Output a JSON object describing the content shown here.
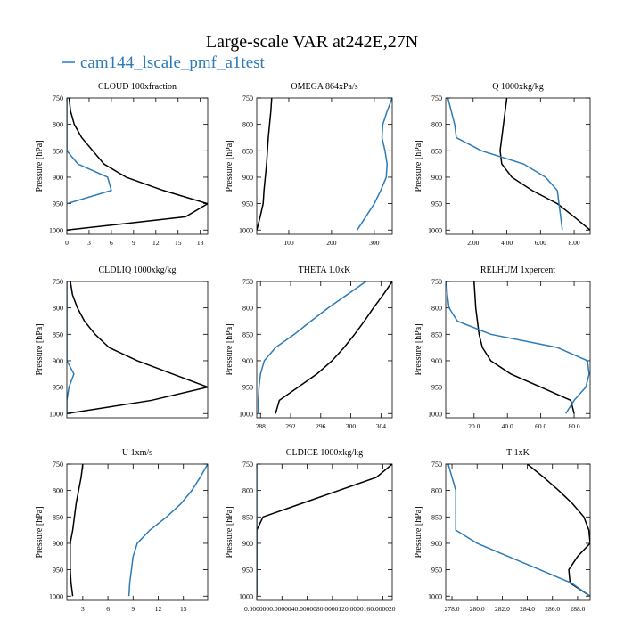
{
  "title": "Large-scale VAR at242E,27N",
  "legend": {
    "name": "cam144_lscale_pmf_a1test",
    "color": "#2b7bb9"
  },
  "chart_data": [
    {
      "type": "line",
      "title": "CLOUD  100xfraction",
      "ylabel": "Pressure [hPa]",
      "y": [
        750,
        775,
        800,
        825,
        850,
        875,
        900,
        925,
        950,
        975,
        1000
      ],
      "xlim": [
        0,
        19
      ],
      "xticks": [
        0,
        3,
        6,
        9,
        12,
        15,
        18
      ],
      "ylim": [
        750,
        1008
      ],
      "yticks": [
        750,
        800,
        850,
        900,
        950,
        1000
      ],
      "series": [
        {
          "color": "#000000",
          "values": [
            0.3,
            0.5,
            1,
            2,
            3.5,
            5,
            8,
            13,
            19,
            16,
            0
          ]
        },
        {
          "color": "#2b7bb9",
          "values": [
            0,
            0,
            0,
            0,
            0,
            1.5,
            5.5,
            6,
            0,
            null,
            null
          ]
        }
      ]
    },
    {
      "type": "line",
      "title": "OMEGA  864xPa/s",
      "ylabel": "Pressure [hPa]",
      "y": [
        750,
        775,
        800,
        825,
        850,
        875,
        900,
        925,
        950,
        975,
        1000
      ],
      "xlim": [
        25,
        342
      ],
      "xticks": [
        100,
        200,
        300
      ],
      "ylim": [
        750,
        1008
      ],
      "yticks": [
        750,
        800,
        850,
        900,
        950,
        1000
      ],
      "series": [
        {
          "color": "#000000",
          "values": [
            60,
            58,
            55,
            52,
            50,
            48,
            45,
            42,
            40,
            33,
            25
          ]
        },
        {
          "color": "#2b7bb9",
          "values": [
            342,
            330,
            320,
            318,
            325,
            330,
            328,
            315,
            300,
            280,
            260
          ]
        }
      ]
    },
    {
      "type": "line",
      "title": "Q  1000xkg/kg",
      "ylabel": "Pressure [hPa]",
      "y": [
        750,
        775,
        800,
        825,
        850,
        875,
        900,
        925,
        950,
        975,
        1000
      ],
      "xlim": [
        0.37,
        8.95
      ],
      "xticks": [
        {
          "value": 2,
          "label": "2.00"
        },
        {
          "value": 4,
          "label": "4.00"
        },
        {
          "value": 6,
          "label": "6.00"
        },
        {
          "value": 8,
          "label": "8.00"
        }
      ],
      "ylim": [
        750,
        1008
      ],
      "yticks": [
        750,
        800,
        850,
        900,
        950,
        1000
      ],
      "series": [
        {
          "color": "#000000",
          "values": [
            4.0,
            3.9,
            3.8,
            3.7,
            3.6,
            3.7,
            4.3,
            5.5,
            7.0,
            8.0,
            8.95
          ]
        },
        {
          "color": "#2b7bb9",
          "values": [
            0.5,
            0.7,
            0.9,
            1.0,
            2.5,
            5.0,
            6.3,
            7.0,
            7.1,
            7.2,
            7.3
          ]
        }
      ]
    },
    {
      "type": "line",
      "title": "CLDLIQ  1000xkg/kg",
      "ylabel": "Pressure [hPa]",
      "y": [
        750,
        775,
        800,
        825,
        850,
        875,
        900,
        925,
        950,
        975,
        1000
      ],
      "xlim": [
        0,
        20
      ],
      "ylim": [
        750,
        1008
      ],
      "yticks": [
        750,
        800,
        850,
        900,
        950,
        1000
      ],
      "series": [
        {
          "color": "#000000",
          "values": [
            0.5,
            0.8,
            1.5,
            2.5,
            4,
            6,
            10,
            15,
            20,
            12,
            0
          ]
        },
        {
          "color": "#2b7bb9",
          "values": [
            0,
            0,
            0,
            0,
            0,
            0,
            0,
            1,
            0.3,
            0,
            0
          ]
        }
      ]
    },
    {
      "type": "line",
      "title": "THETA  1.0xK",
      "ylabel": "Pressure [hPa]",
      "y": [
        750,
        775,
        800,
        825,
        850,
        875,
        900,
        925,
        950,
        975,
        1000
      ],
      "xlim": [
        287.5,
        305.5
      ],
      "xticks": [
        288,
        292,
        296,
        300,
        304
      ],
      "ylim": [
        750,
        1008
      ],
      "yticks": [
        750,
        800,
        850,
        900,
        950,
        1000
      ],
      "series": [
        {
          "color": "#000000",
          "values": [
            305.5,
            304.3,
            303,
            301.8,
            300.5,
            299.1,
            297.5,
            295.5,
            293,
            290.5,
            290
          ]
        },
        {
          "color": "#2b7bb9",
          "values": [
            302,
            299.5,
            297,
            294.7,
            292.5,
            290,
            288.5,
            288,
            287.8,
            287.7,
            287.7
          ]
        }
      ]
    },
    {
      "type": "line",
      "title": "RELHUM  1xpercent",
      "ylabel": "Pressure [hPa]",
      "y": [
        750,
        775,
        800,
        825,
        850,
        875,
        900,
        925,
        950,
        975,
        1000
      ],
      "xlim": [
        3,
        89.6
      ],
      "xticks": [
        {
          "value": 20,
          "label": "20.0"
        },
        {
          "value": 40,
          "label": "40.0"
        },
        {
          "value": 60,
          "label": "60.0"
        },
        {
          "value": 80,
          "label": "80.0"
        }
      ],
      "ylim": [
        750,
        1008
      ],
      "yticks": [
        750,
        800,
        850,
        900,
        950,
        1000
      ],
      "series": [
        {
          "color": "#000000",
          "values": [
            20,
            20.5,
            21,
            22,
            23,
            25,
            30,
            42,
            60,
            78,
            80
          ]
        },
        {
          "color": "#2b7bb9",
          "values": [
            3.5,
            4,
            5,
            10,
            30,
            70,
            88,
            89,
            87,
            80,
            75
          ]
        }
      ]
    },
    {
      "type": "line",
      "title": "U  1xm/s",
      "ylabel": "Pressure [hPa]",
      "y": [
        750,
        775,
        800,
        825,
        850,
        875,
        900,
        925,
        950,
        975,
        1000
      ],
      "xlim": [
        1.1,
        17.9
      ],
      "xticks": [
        3,
        6,
        9,
        12,
        15
      ],
      "ylim": [
        750,
        1008
      ],
      "yticks": [
        750,
        800,
        850,
        900,
        950,
        1000
      ],
      "series": [
        {
          "color": "#000000",
          "values": [
            3,
            2.8,
            2.5,
            2.2,
            2,
            1.8,
            1.5,
            1.5,
            1.5,
            1.6,
            1.8
          ]
        },
        {
          "color": "#2b7bb9",
          "values": [
            17.9,
            17,
            16,
            14.7,
            13,
            11,
            9.5,
            9,
            8.8,
            8.6,
            8.5
          ]
        }
      ]
    },
    {
      "type": "line",
      "title": "CLDICE  1000xkg/kg",
      "ylabel": "Pressure [hPa]",
      "y": [
        750,
        775,
        800,
        825,
        850,
        875,
        900,
        925,
        950,
        975,
        1000
      ],
      "xlim": [
        0,
        2.15e-05
      ],
      "xticks": [
        {
          "value": 0,
          "label": "0.000000"
        },
        {
          "value": 4e-06,
          "label": "0.000004"
        },
        {
          "value": 8e-06,
          "label": "0.000008"
        },
        {
          "value": 1.2e-05,
          "label": "0.000012"
        },
        {
          "value": 1.6e-05,
          "label": "0.000016"
        },
        {
          "value": 2e-05,
          "label": "0.000020"
        }
      ],
      "ylim": [
        750,
        1008
      ],
      "yticks": [
        750,
        800,
        850,
        900,
        950,
        1000
      ],
      "series": [
        {
          "color": "#000000",
          "values": [
            2.15e-05,
            1.9e-05,
            1.3e-05,
            7e-06,
            1e-06,
            0,
            0,
            0,
            0,
            0,
            0
          ]
        },
        {
          "color": "#2b7bb9",
          "values": [
            0,
            0,
            0,
            0,
            0,
            0,
            0,
            0,
            0,
            0,
            0
          ]
        }
      ]
    },
    {
      "type": "line",
      "title": "T  1xK",
      "ylabel": "Pressure [hPa]",
      "y": [
        750,
        775,
        800,
        825,
        850,
        875,
        900,
        925,
        950,
        975,
        1000
      ],
      "xlim": [
        277.5,
        289
      ],
      "xticks": [
        {
          "value": 278,
          "label": "278.0"
        },
        {
          "value": 280,
          "label": "280.0"
        },
        {
          "value": 282,
          "label": "282.0"
        },
        {
          "value": 284,
          "label": "284.0"
        },
        {
          "value": 286,
          "label": "286.0"
        },
        {
          "value": 288,
          "label": "288.0"
        }
      ],
      "ylim": [
        750,
        1008
      ],
      "yticks": [
        750,
        800,
        850,
        900,
        950,
        1000
      ],
      "series": [
        {
          "color": "#000000",
          "values": [
            284,
            285.3,
            286.5,
            287.6,
            288.5,
            288.9,
            289,
            288,
            287.3,
            287.4,
            289
          ]
        },
        {
          "color": "#2b7bb9",
          "values": [
            277.7,
            278,
            278.3,
            278.3,
            278.3,
            278.3,
            280,
            282.5,
            285,
            287.5,
            289
          ]
        }
      ]
    }
  ]
}
